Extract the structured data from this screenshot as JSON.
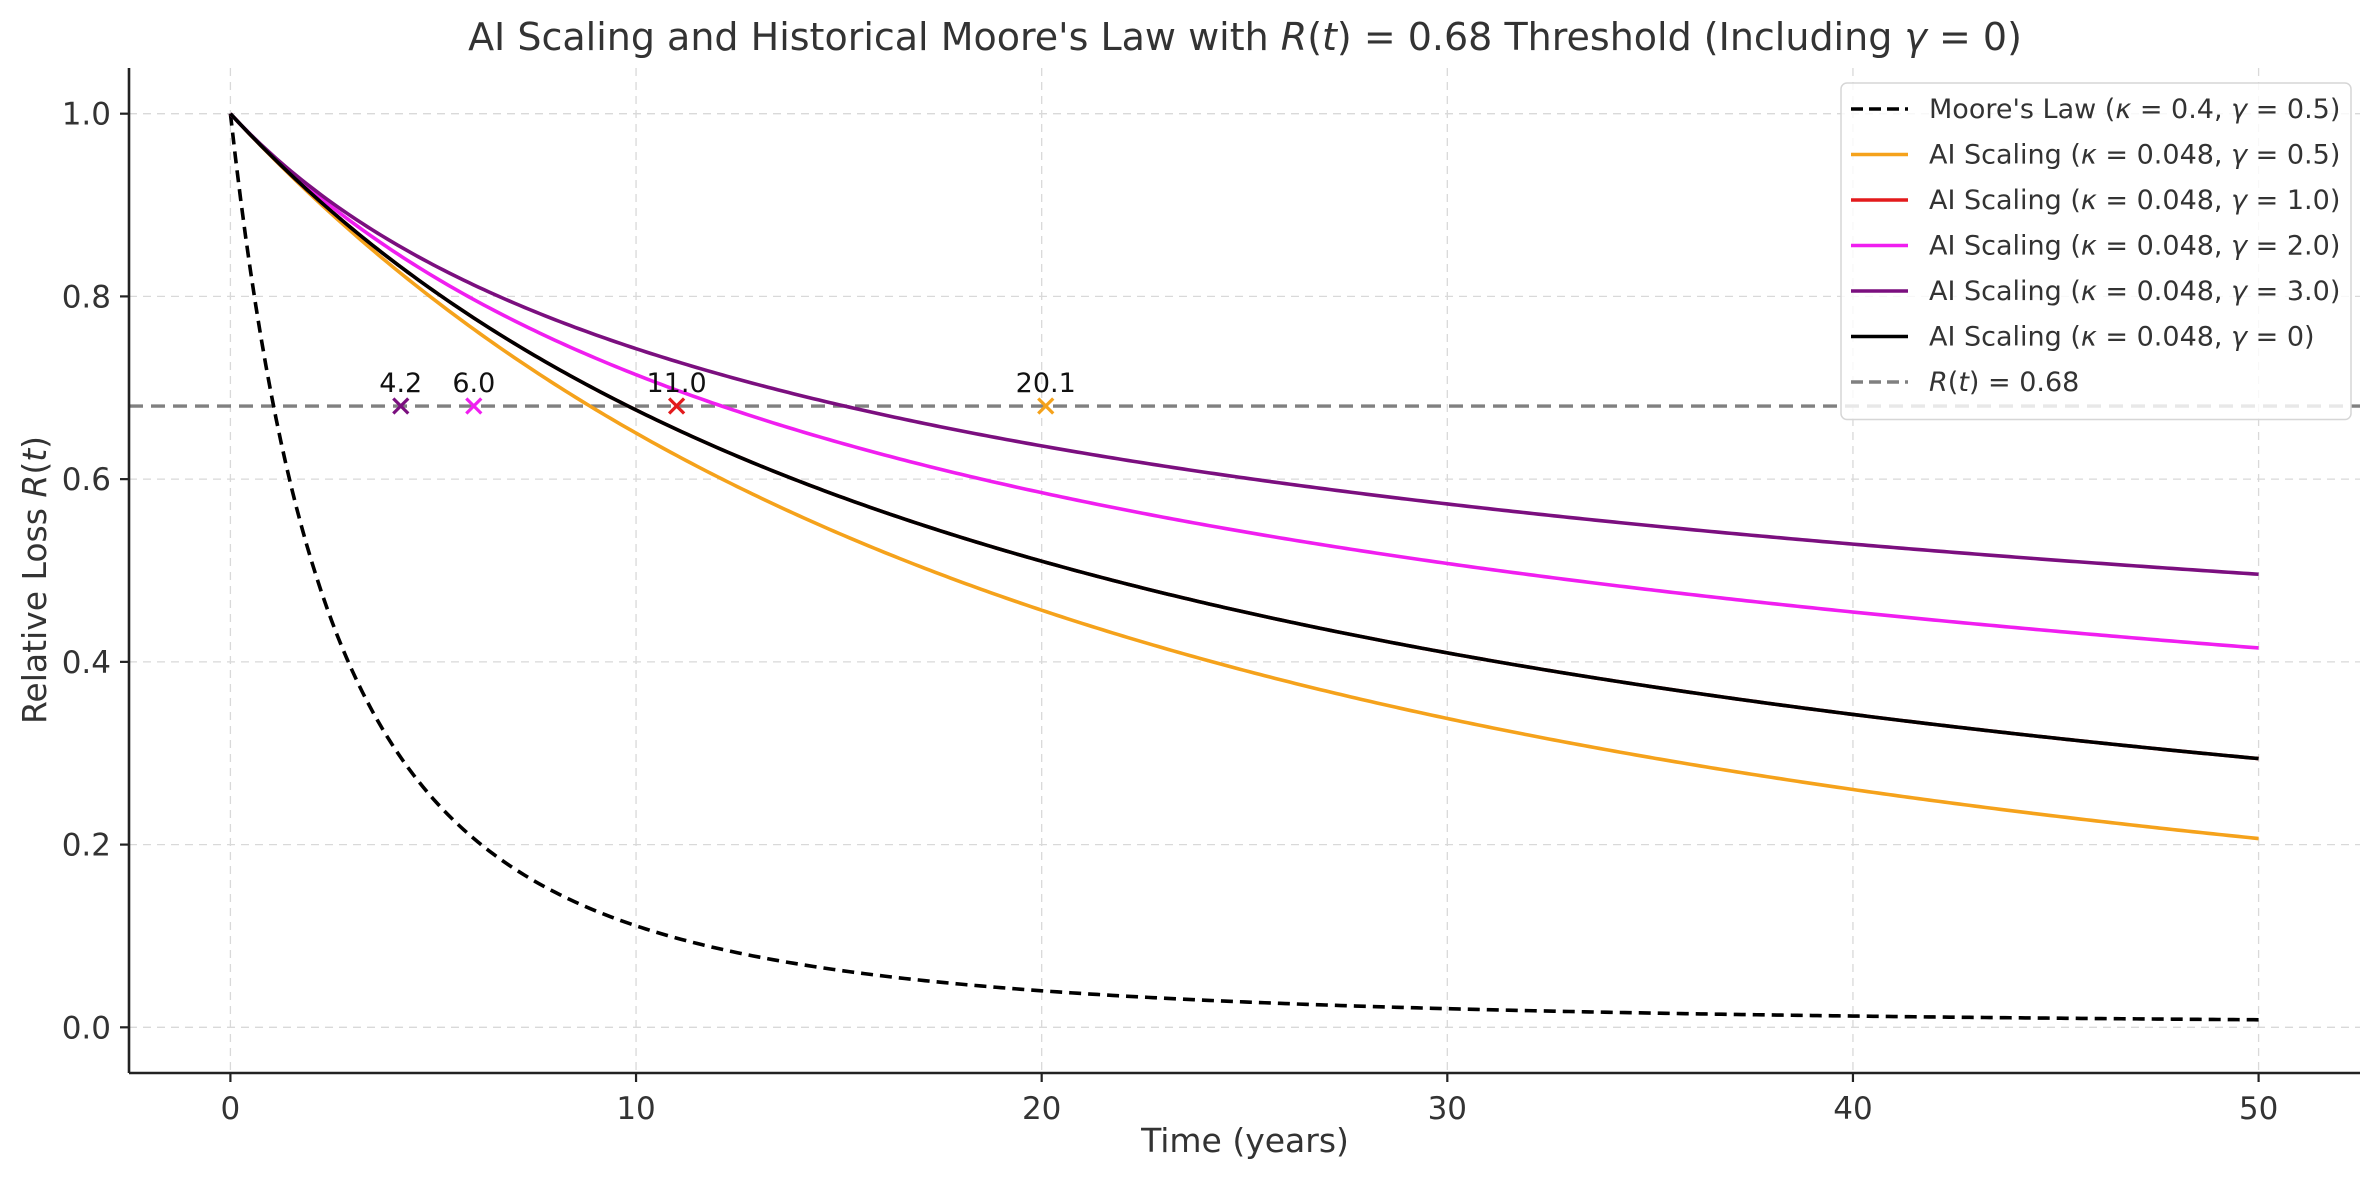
{
  "chart_data": {
    "type": "line",
    "title": {
      "prefix": "AI Scaling and Historical Moore's Law with ",
      "math": "R(t) = 0.68",
      "middle": " Threshold (Including ",
      "math2": "γ = 0",
      "suffix": ")"
    },
    "xlabel": "Time (years)",
    "ylabel": "Relative Loss R(t)",
    "xlim": [
      -2.5,
      52.5
    ],
    "ylim": [
      -0.05,
      1.05
    ],
    "x_ticks": [
      "0",
      "10",
      "20",
      "30",
      "40",
      "50"
    ],
    "y_ticks": [
      "0.0",
      "0.2",
      "0.4",
      "0.6",
      "0.8",
      "1.0"
    ],
    "grid": true,
    "legend_position": "top-right",
    "x_range": [
      0,
      50
    ],
    "series": [
      {
        "name": "Moore's Law (κ = 0.4, γ = 0.5)",
        "kappa": 0.4,
        "gamma": 0.5,
        "color": "#000000",
        "dash": "dashed"
      },
      {
        "name": "AI Scaling (κ = 0.048, γ = 0.5)",
        "kappa": 0.048,
        "gamma": 0.5,
        "color": "#f5a21b",
        "dash": "solid"
      },
      {
        "name": "AI Scaling (κ = 0.048, γ = 1.0)",
        "kappa": 0.048,
        "gamma": 1.0,
        "color": "#e31a1c",
        "dash": "solid"
      },
      {
        "name": "AI Scaling (κ = 0.048, γ = 2.0)",
        "kappa": 0.048,
        "gamma": 2.0,
        "color": "#f01ef0",
        "dash": "solid"
      },
      {
        "name": "AI Scaling (κ = 0.048, γ = 3.0)",
        "kappa": 0.048,
        "gamma": 3.0,
        "color": "#7b0f7f",
        "dash": "solid"
      },
      {
        "name": "AI Scaling (κ = 0.048, γ = 0)",
        "kappa": 0.048,
        "gamma": 0,
        "color": "#000000",
        "dash": "solid"
      }
    ],
    "threshold": {
      "name": "R(t) = 0.68",
      "y": 0.68,
      "color": "#808080",
      "dash": "dashed"
    },
    "crossings": [
      {
        "x": 4.2,
        "label": "4.2",
        "color": "#7b0f7f"
      },
      {
        "x": 6.0,
        "label": "6.0",
        "color": "#f01ef0"
      },
      {
        "x": 11.0,
        "label": "11.0",
        "color": "#e31a1c"
      },
      {
        "x": 20.1,
        "label": "20.1",
        "color": "#f5a21b"
      }
    ]
  }
}
